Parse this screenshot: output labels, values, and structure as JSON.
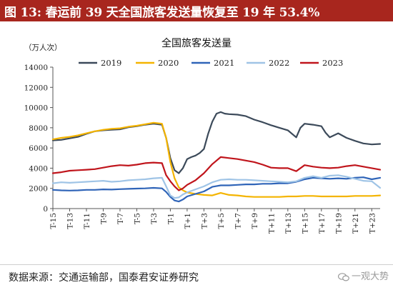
{
  "header": {
    "title": "图 13: 春运前 39 天全国旅客发送量恢复至 19 年 53.4%",
    "background_color": "#a8261e"
  },
  "footer": {
    "source": "数据来源：交通运输部，国泰君安证券研究",
    "watermark": "一观大势"
  },
  "chart_data": {
    "type": "line",
    "title": "全国旅客发送量",
    "ylabel": "（万人次）",
    "ylim": [
      0,
      14000
    ],
    "yticks": [
      0,
      2000,
      4000,
      6000,
      8000,
      10000,
      12000,
      14000
    ],
    "ytick_labels": [
      "0",
      "2000",
      "4000",
      "6000",
      "8000",
      "10000",
      "12000",
      "14000"
    ],
    "x_start_index": -15,
    "x_end_index": 24,
    "xtick_labels": [
      "T-15",
      "T-13",
      "T-11",
      "T-9",
      "T-7",
      "T-5",
      "T-3",
      "T-1",
      "T+1",
      "T+3",
      "T+5",
      "T+7",
      "T+9",
      "T+11",
      "T+13",
      "T+15",
      "T+17",
      "T+19",
      "T+21",
      "T+23"
    ],
    "legend_position": "top",
    "series": [
      {
        "name": "2019",
        "color": "#3c4a5a",
        "points": [
          [
            -15,
            6750
          ],
          [
            -14,
            6800
          ],
          [
            -13,
            6950
          ],
          [
            -12,
            7100
          ],
          [
            -11,
            7400
          ],
          [
            -10,
            7650
          ],
          [
            -9,
            7750
          ],
          [
            -8,
            7800
          ],
          [
            -7,
            7850
          ],
          [
            -6,
            8050
          ],
          [
            -5,
            8150
          ],
          [
            -4,
            8300
          ],
          [
            -3,
            8400
          ],
          [
            -2,
            8300
          ],
          [
            -1.5,
            7000
          ],
          [
            -1,
            5000
          ],
          [
            -0.5,
            3800
          ],
          [
            0,
            3500
          ],
          [
            0.5,
            4000
          ],
          [
            1,
            4900
          ],
          [
            1.5,
            5100
          ],
          [
            2,
            5250
          ],
          [
            2.5,
            5500
          ],
          [
            3,
            5900
          ],
          [
            3.5,
            7400
          ],
          [
            4,
            8600
          ],
          [
            4.5,
            9400
          ],
          [
            5,
            9550
          ],
          [
            5.5,
            9400
          ],
          [
            6,
            9350
          ],
          [
            7,
            9300
          ],
          [
            8,
            9150
          ],
          [
            9,
            8800
          ],
          [
            10,
            8550
          ],
          [
            11,
            8250
          ],
          [
            12,
            8000
          ],
          [
            13,
            7750
          ],
          [
            14,
            7050
          ],
          [
            14.5,
            8000
          ],
          [
            15,
            8400
          ],
          [
            16,
            8300
          ],
          [
            17,
            8150
          ],
          [
            17.5,
            7500
          ],
          [
            18,
            7050
          ],
          [
            19,
            7450
          ],
          [
            20,
            7000
          ],
          [
            21,
            6700
          ],
          [
            22,
            6450
          ],
          [
            23,
            6350
          ],
          [
            24,
            6400
          ]
        ]
      },
      {
        "name": "2020",
        "color": "#f4b400",
        "points": [
          [
            -15,
            6850
          ],
          [
            -14,
            7000
          ],
          [
            -13,
            7100
          ],
          [
            -12,
            7250
          ],
          [
            -11,
            7450
          ],
          [
            -10,
            7650
          ],
          [
            -9,
            7800
          ],
          [
            -8,
            7900
          ],
          [
            -7,
            7950
          ],
          [
            -6,
            8100
          ],
          [
            -5,
            8200
          ],
          [
            -4,
            8350
          ],
          [
            -3,
            8500
          ],
          [
            -2,
            8400
          ],
          [
            -1.5,
            7000
          ],
          [
            -1,
            4600
          ],
          [
            -0.5,
            3000
          ],
          [
            0,
            2100
          ],
          [
            0.5,
            1800
          ],
          [
            1,
            1600
          ],
          [
            2,
            1450
          ],
          [
            3,
            1350
          ],
          [
            4,
            1300
          ],
          [
            5,
            1550
          ],
          [
            6,
            1350
          ],
          [
            7,
            1300
          ],
          [
            8,
            1200
          ],
          [
            9,
            1150
          ],
          [
            10,
            1150
          ],
          [
            11,
            1150
          ],
          [
            12,
            1150
          ],
          [
            13,
            1200
          ],
          [
            14,
            1200
          ],
          [
            15,
            1250
          ],
          [
            16,
            1250
          ],
          [
            17,
            1200
          ],
          [
            18,
            1200
          ],
          [
            19,
            1200
          ],
          [
            20,
            1200
          ],
          [
            21,
            1250
          ],
          [
            22,
            1250
          ],
          [
            23,
            1250
          ],
          [
            24,
            1300
          ]
        ]
      },
      {
        "name": "2021",
        "color": "#2f64b8",
        "points": [
          [
            -15,
            1850
          ],
          [
            -14,
            1800
          ],
          [
            -13,
            1780
          ],
          [
            -12,
            1800
          ],
          [
            -11,
            1850
          ],
          [
            -10,
            1850
          ],
          [
            -9,
            1900
          ],
          [
            -8,
            1880
          ],
          [
            -7,
            1920
          ],
          [
            -6,
            1950
          ],
          [
            -5,
            1980
          ],
          [
            -4,
            2000
          ],
          [
            -3,
            2050
          ],
          [
            -2,
            2000
          ],
          [
            -1.5,
            1650
          ],
          [
            -1,
            1150
          ],
          [
            -0.5,
            800
          ],
          [
            0,
            700
          ],
          [
            0.5,
            900
          ],
          [
            1,
            1200
          ],
          [
            2,
            1450
          ],
          [
            3,
            1700
          ],
          [
            4,
            2150
          ],
          [
            5,
            2300
          ],
          [
            6,
            2300
          ],
          [
            7,
            2350
          ],
          [
            8,
            2400
          ],
          [
            9,
            2400
          ],
          [
            10,
            2450
          ],
          [
            11,
            2450
          ],
          [
            12,
            2500
          ],
          [
            13,
            2500
          ],
          [
            14,
            2650
          ],
          [
            15,
            2900
          ],
          [
            16,
            3050
          ],
          [
            17,
            3000
          ],
          [
            18,
            2950
          ],
          [
            19,
            3000
          ],
          [
            20,
            2950
          ],
          [
            21,
            3050
          ],
          [
            22,
            3100
          ],
          [
            23,
            2900
          ],
          [
            24,
            3050
          ]
        ]
      },
      {
        "name": "2022",
        "color": "#9fc4e6",
        "points": [
          [
            -15,
            2500
          ],
          [
            -14,
            2600
          ],
          [
            -13,
            2550
          ],
          [
            -12,
            2600
          ],
          [
            -11,
            2650
          ],
          [
            -10,
            2700
          ],
          [
            -9,
            2750
          ],
          [
            -8,
            2650
          ],
          [
            -7,
            2700
          ],
          [
            -6,
            2800
          ],
          [
            -5,
            2850
          ],
          [
            -4,
            2900
          ],
          [
            -3,
            3000
          ],
          [
            -2,
            3050
          ],
          [
            -1.5,
            2200
          ],
          [
            -1,
            1300
          ],
          [
            -0.5,
            1050
          ],
          [
            0,
            1100
          ],
          [
            0.5,
            1400
          ],
          [
            1,
            1600
          ],
          [
            2,
            1900
          ],
          [
            3,
            2200
          ],
          [
            4,
            2600
          ],
          [
            5,
            2850
          ],
          [
            6,
            2900
          ],
          [
            7,
            2850
          ],
          [
            8,
            2850
          ],
          [
            9,
            2800
          ],
          [
            10,
            2750
          ],
          [
            11,
            2700
          ],
          [
            12,
            2650
          ],
          [
            13,
            2600
          ],
          [
            14,
            2700
          ],
          [
            15,
            3050
          ],
          [
            16,
            3200
          ],
          [
            17,
            3050
          ],
          [
            18,
            3250
          ],
          [
            19,
            3300
          ],
          [
            20,
            3150
          ],
          [
            21,
            2950
          ],
          [
            22,
            2750
          ],
          [
            23,
            2700
          ],
          [
            24,
            2050
          ]
        ]
      },
      {
        "name": "2023",
        "color": "#c0151c",
        "points": [
          [
            -15,
            3500
          ],
          [
            -14,
            3600
          ],
          [
            -13,
            3750
          ],
          [
            -12,
            3800
          ],
          [
            -11,
            3850
          ],
          [
            -10,
            3900
          ],
          [
            -9,
            4050
          ],
          [
            -8,
            4200
          ],
          [
            -7,
            4300
          ],
          [
            -6,
            4250
          ],
          [
            -5,
            4350
          ],
          [
            -4,
            4500
          ],
          [
            -3,
            4550
          ],
          [
            -2,
            4500
          ],
          [
            -1.5,
            3300
          ],
          [
            -1,
            2700
          ],
          [
            -0.5,
            2200
          ],
          [
            0,
            1800
          ],
          [
            0.5,
            2000
          ],
          [
            1,
            2350
          ],
          [
            2,
            2800
          ],
          [
            3,
            3500
          ],
          [
            4,
            4400
          ],
          [
            5,
            5100
          ],
          [
            6,
            5000
          ],
          [
            7,
            4900
          ],
          [
            8,
            4750
          ],
          [
            9,
            4600
          ],
          [
            10,
            4350
          ],
          [
            11,
            4050
          ],
          [
            12,
            4000
          ],
          [
            13,
            4000
          ],
          [
            14,
            3700
          ],
          [
            15,
            4300
          ],
          [
            16,
            4150
          ],
          [
            17,
            4050
          ],
          [
            18,
            4000
          ],
          [
            19,
            4050
          ],
          [
            20,
            4200
          ],
          [
            21,
            4300
          ],
          [
            22,
            4150
          ],
          [
            23,
            4000
          ],
          [
            24,
            3850
          ]
        ]
      }
    ]
  }
}
